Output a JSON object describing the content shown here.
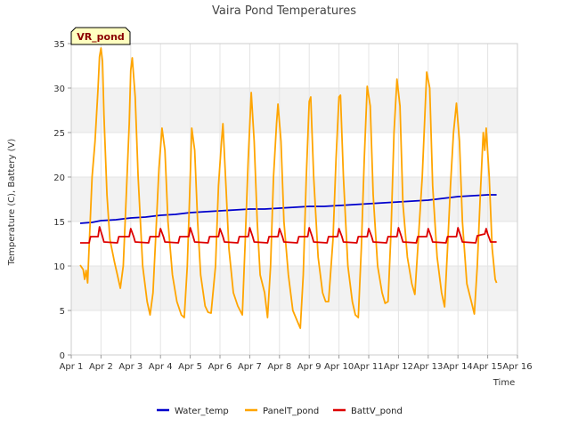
{
  "chart_data": {
    "type": "line",
    "title": "Vaira Pond Temperatures",
    "xlabel": "Time",
    "ylabel": "Temperature (C), Battery (V)",
    "badge": "VR_pond",
    "xlim": [
      1,
      16
    ],
    "ylim": [
      0,
      35
    ],
    "x_ticks": [
      {
        "v": 1,
        "label": "Apr 1"
      },
      {
        "v": 2,
        "label": "Apr 2"
      },
      {
        "v": 3,
        "label": "Apr 3"
      },
      {
        "v": 4,
        "label": "Apr 4"
      },
      {
        "v": 5,
        "label": "Apr 5"
      },
      {
        "v": 6,
        "label": "Apr 6"
      },
      {
        "v": 7,
        "label": "Apr 7"
      },
      {
        "v": 8,
        "label": "Apr 8"
      },
      {
        "v": 9,
        "label": "Apr 9"
      },
      {
        "v": 10,
        "label": "Apr 10"
      },
      {
        "v": 11,
        "label": "Apr 11"
      },
      {
        "v": 12,
        "label": "Apr 12"
      },
      {
        "v": 13,
        "label": "Apr 13"
      },
      {
        "v": 14,
        "label": "Apr 14"
      },
      {
        "v": 15,
        "label": "Apr 15"
      },
      {
        "v": 16,
        "label": "Apr 16"
      }
    ],
    "y_ticks": [
      {
        "v": 0,
        "label": "0"
      },
      {
        "v": 5,
        "label": "5"
      },
      {
        "v": 10,
        "label": "10"
      },
      {
        "v": 15,
        "label": "15"
      },
      {
        "v": 20,
        "label": "20"
      },
      {
        "v": 25,
        "label": "25"
      },
      {
        "v": 30,
        "label": "30"
      },
      {
        "v": 35,
        "label": "35"
      }
    ],
    "grid": true,
    "legend_position": "bottom",
    "series": [
      {
        "name": "Water_temp",
        "color": "#0000cc",
        "points": [
          [
            1.3,
            14.8
          ],
          [
            1.7,
            14.9
          ],
          [
            2.0,
            15.1
          ],
          [
            2.5,
            15.2
          ],
          [
            3.0,
            15.4
          ],
          [
            3.5,
            15.5
          ],
          [
            4.0,
            15.7
          ],
          [
            4.5,
            15.8
          ],
          [
            5.0,
            16.0
          ],
          [
            5.5,
            16.1
          ],
          [
            6.0,
            16.2
          ],
          [
            6.5,
            16.3
          ],
          [
            7.0,
            16.4
          ],
          [
            7.5,
            16.4
          ],
          [
            8.0,
            16.5
          ],
          [
            8.5,
            16.6
          ],
          [
            9.0,
            16.7
          ],
          [
            9.5,
            16.7
          ],
          [
            10.0,
            16.8
          ],
          [
            10.5,
            16.9
          ],
          [
            11.0,
            17.0
          ],
          [
            11.5,
            17.1
          ],
          [
            12.0,
            17.2
          ],
          [
            12.5,
            17.3
          ],
          [
            13.0,
            17.4
          ],
          [
            13.5,
            17.6
          ],
          [
            14.0,
            17.8
          ],
          [
            14.5,
            17.9
          ],
          [
            15.0,
            18.0
          ],
          [
            15.3,
            18.0
          ]
        ]
      },
      {
        "name": "PanelT_pond",
        "color": "#ffa500",
        "points": [
          [
            1.3,
            10.1
          ],
          [
            1.4,
            9.6
          ],
          [
            1.45,
            8.5
          ],
          [
            1.5,
            9.5
          ],
          [
            1.55,
            8.1
          ],
          [
            1.6,
            12
          ],
          [
            1.7,
            20
          ],
          [
            1.8,
            24
          ],
          [
            1.9,
            30
          ],
          [
            1.95,
            33.5
          ],
          [
            2.0,
            34.5
          ],
          [
            2.05,
            33
          ],
          [
            2.1,
            27
          ],
          [
            2.2,
            18
          ],
          [
            2.3,
            13
          ],
          [
            2.45,
            10.5
          ],
          [
            2.55,
            9
          ],
          [
            2.65,
            7.5
          ],
          [
            2.75,
            10
          ],
          [
            2.85,
            18
          ],
          [
            2.95,
            26
          ],
          [
            3.0,
            32
          ],
          [
            3.05,
            33.4
          ],
          [
            3.15,
            29
          ],
          [
            3.25,
            20
          ],
          [
            3.4,
            10
          ],
          [
            3.55,
            6
          ],
          [
            3.65,
            4.5
          ],
          [
            3.75,
            7
          ],
          [
            3.85,
            14
          ],
          [
            3.95,
            21
          ],
          [
            4.05,
            25.5
          ],
          [
            4.15,
            23
          ],
          [
            4.25,
            15
          ],
          [
            4.4,
            9
          ],
          [
            4.55,
            6
          ],
          [
            4.7,
            4.5
          ],
          [
            4.8,
            4.2
          ],
          [
            4.9,
            10
          ],
          [
            5.0,
            20
          ],
          [
            5.05,
            25.5
          ],
          [
            5.15,
            23
          ],
          [
            5.25,
            15
          ],
          [
            5.35,
            9
          ],
          [
            5.5,
            5.5
          ],
          [
            5.6,
            4.8
          ],
          [
            5.7,
            4.7
          ],
          [
            5.85,
            10
          ],
          [
            5.95,
            19
          ],
          [
            6.05,
            24
          ],
          [
            6.1,
            26
          ],
          [
            6.2,
            19
          ],
          [
            6.3,
            12
          ],
          [
            6.45,
            7
          ],
          [
            6.6,
            5.5
          ],
          [
            6.75,
            4.5
          ],
          [
            6.85,
            13
          ],
          [
            6.95,
            22
          ],
          [
            7.05,
            29.5
          ],
          [
            7.15,
            24
          ],
          [
            7.25,
            15
          ],
          [
            7.35,
            9
          ],
          [
            7.5,
            7
          ],
          [
            7.6,
            4.2
          ],
          [
            7.7,
            10
          ],
          [
            7.8,
            20
          ],
          [
            7.9,
            26
          ],
          [
            7.95,
            28.2
          ],
          [
            8.05,
            24
          ],
          [
            8.15,
            15
          ],
          [
            8.3,
            9
          ],
          [
            8.45,
            5
          ],
          [
            8.6,
            3.8
          ],
          [
            8.7,
            3
          ],
          [
            8.8,
            9
          ],
          [
            8.9,
            20
          ],
          [
            9.0,
            28.5
          ],
          [
            9.05,
            29
          ],
          [
            9.15,
            20
          ],
          [
            9.3,
            11
          ],
          [
            9.45,
            7
          ],
          [
            9.55,
            6
          ],
          [
            9.65,
            6
          ],
          [
            9.8,
            13
          ],
          [
            9.9,
            22
          ],
          [
            10.0,
            29
          ],
          [
            10.05,
            29.2
          ],
          [
            10.15,
            20
          ],
          [
            10.3,
            10
          ],
          [
            10.45,
            6
          ],
          [
            10.55,
            4.5
          ],
          [
            10.65,
            4.2
          ],
          [
            10.75,
            12
          ],
          [
            10.85,
            22
          ],
          [
            10.95,
            30.2
          ],
          [
            11.05,
            28
          ],
          [
            11.15,
            18
          ],
          [
            11.3,
            10
          ],
          [
            11.45,
            7
          ],
          [
            11.55,
            5.8
          ],
          [
            11.65,
            6
          ],
          [
            11.75,
            14
          ],
          [
            11.85,
            25
          ],
          [
            11.95,
            31
          ],
          [
            12.05,
            28
          ],
          [
            12.15,
            17
          ],
          [
            12.3,
            11
          ],
          [
            12.45,
            8
          ],
          [
            12.55,
            6.8
          ],
          [
            12.65,
            12
          ],
          [
            12.8,
            20
          ],
          [
            12.9,
            28
          ],
          [
            12.95,
            31.8
          ],
          [
            13.05,
            30
          ],
          [
            13.15,
            19
          ],
          [
            13.3,
            11
          ],
          [
            13.45,
            7
          ],
          [
            13.55,
            5.4
          ],
          [
            13.65,
            12
          ],
          [
            13.75,
            19
          ],
          [
            13.85,
            25
          ],
          [
            13.95,
            28.3
          ],
          [
            14.05,
            24
          ],
          [
            14.15,
            15
          ],
          [
            14.3,
            8
          ],
          [
            14.45,
            6
          ],
          [
            14.55,
            4.6
          ],
          [
            14.65,
            10
          ],
          [
            14.75,
            18
          ],
          [
            14.85,
            25
          ],
          [
            14.9,
            23
          ],
          [
            14.95,
            25.5
          ],
          [
            15.05,
            20
          ],
          [
            15.15,
            12
          ],
          [
            15.25,
            8.5
          ],
          [
            15.3,
            8.1
          ]
        ]
      },
      {
        "name": "BattV_pond",
        "color": "#dd0000",
        "points": [
          [
            1.3,
            12.6
          ],
          [
            1.6,
            12.6
          ],
          [
            1.65,
            13.3
          ],
          [
            1.9,
            13.3
          ],
          [
            1.95,
            14.4
          ],
          [
            2.05,
            13.3
          ],
          [
            2.1,
            12.7
          ],
          [
            2.55,
            12.6
          ],
          [
            2.6,
            13.3
          ],
          [
            2.95,
            13.3
          ],
          [
            3.0,
            14.2
          ],
          [
            3.1,
            13.3
          ],
          [
            3.15,
            12.7
          ],
          [
            3.6,
            12.6
          ],
          [
            3.65,
            13.3
          ],
          [
            3.95,
            13.3
          ],
          [
            4.0,
            14.2
          ],
          [
            4.1,
            13.3
          ],
          [
            4.15,
            12.7
          ],
          [
            4.6,
            12.6
          ],
          [
            4.65,
            13.3
          ],
          [
            4.95,
            13.3
          ],
          [
            5.0,
            14.3
          ],
          [
            5.1,
            13.3
          ],
          [
            5.15,
            12.7
          ],
          [
            5.6,
            12.6
          ],
          [
            5.65,
            13.3
          ],
          [
            5.95,
            13.3
          ],
          [
            6.0,
            14.2
          ],
          [
            6.1,
            13.3
          ],
          [
            6.15,
            12.7
          ],
          [
            6.6,
            12.6
          ],
          [
            6.65,
            13.3
          ],
          [
            6.95,
            13.3
          ],
          [
            7.0,
            14.3
          ],
          [
            7.1,
            13.3
          ],
          [
            7.15,
            12.7
          ],
          [
            7.6,
            12.6
          ],
          [
            7.65,
            13.3
          ],
          [
            7.95,
            13.3
          ],
          [
            8.0,
            14.2
          ],
          [
            8.1,
            13.3
          ],
          [
            8.15,
            12.7
          ],
          [
            8.6,
            12.6
          ],
          [
            8.65,
            13.3
          ],
          [
            8.95,
            13.3
          ],
          [
            9.0,
            14.3
          ],
          [
            9.1,
            13.3
          ],
          [
            9.15,
            12.7
          ],
          [
            9.6,
            12.6
          ],
          [
            9.65,
            13.3
          ],
          [
            9.95,
            13.3
          ],
          [
            10.0,
            14.2
          ],
          [
            10.1,
            13.3
          ],
          [
            10.15,
            12.7
          ],
          [
            10.6,
            12.6
          ],
          [
            10.65,
            13.3
          ],
          [
            10.95,
            13.3
          ],
          [
            11.0,
            14.2
          ],
          [
            11.1,
            13.3
          ],
          [
            11.15,
            12.7
          ],
          [
            11.6,
            12.6
          ],
          [
            11.65,
            13.3
          ],
          [
            11.95,
            13.3
          ],
          [
            12.0,
            14.3
          ],
          [
            12.1,
            13.3
          ],
          [
            12.15,
            12.7
          ],
          [
            12.6,
            12.6
          ],
          [
            12.65,
            13.3
          ],
          [
            12.95,
            13.3
          ],
          [
            13.0,
            14.2
          ],
          [
            13.1,
            13.3
          ],
          [
            13.15,
            12.7
          ],
          [
            13.6,
            12.6
          ],
          [
            13.65,
            13.3
          ],
          [
            13.95,
            13.3
          ],
          [
            14.0,
            14.3
          ],
          [
            14.1,
            13.3
          ],
          [
            14.15,
            12.7
          ],
          [
            14.6,
            12.6
          ],
          [
            14.65,
            13.4
          ],
          [
            14.9,
            13.6
          ],
          [
            14.95,
            14.2
          ],
          [
            15.0,
            13.6
          ],
          [
            15.1,
            12.7
          ],
          [
            15.3,
            12.7
          ]
        ]
      }
    ]
  }
}
